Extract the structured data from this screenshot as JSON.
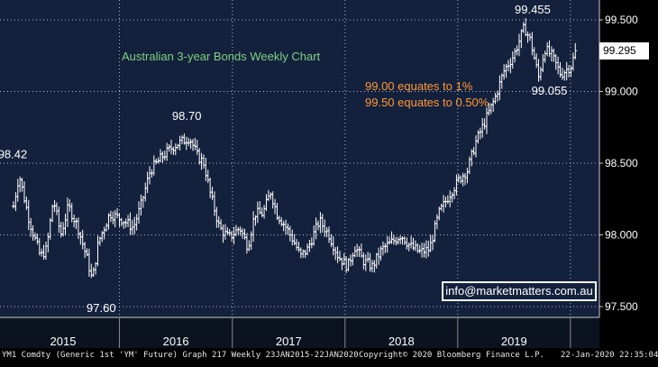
{
  "chart_data": {
    "type": "ohlc",
    "title": "Australian 3-year Bonds Weekly Chart",
    "notes": [
      "99.00 equates to 1%",
      "99.50 equates to 0.50%"
    ],
    "x_labels": [
      "2015",
      "2016",
      "2017",
      "2018",
      "2019"
    ],
    "y_ticks": [
      97.5,
      98.0,
      98.5,
      99.0,
      99.5
    ],
    "y_tick_labels": [
      "97.500",
      "98.000",
      "98.500",
      "99.000",
      "99.500"
    ],
    "ylim": [
      97.38,
      99.56
    ],
    "grid": true,
    "last_price": "99.295",
    "annotations": [
      {
        "label": "98.42",
        "date": "2015-01-20",
        "value": 98.42
      },
      {
        "label": "97.60",
        "date": "2015-10-05",
        "value": 97.6
      },
      {
        "label": "98.70",
        "date": "2016-08-15",
        "value": 98.7
      },
      {
        "label": "99.055",
        "date": "2019-09-20",
        "value": 99.055
      },
      {
        "label": "99.455",
        "date": "2019-08-20",
        "value": 99.455
      }
    ],
    "anchors": [
      [
        "2015-01-23",
        98.2
      ],
      [
        "2015-02-10",
        98.42
      ],
      [
        "2015-03-15",
        98.1
      ],
      [
        "2015-04-20",
        97.85
      ],
      [
        "2015-05-10",
        97.9
      ],
      [
        "2015-06-01",
        98.25
      ],
      [
        "2015-06-25",
        98.0
      ],
      [
        "2015-07-20",
        98.2
      ],
      [
        "2015-08-20",
        98.05
      ],
      [
        "2015-09-20",
        97.82
      ],
      [
        "2015-10-05",
        97.68
      ],
      [
        "2015-10-25",
        97.95
      ],
      [
        "2015-12-01",
        98.15
      ],
      [
        "2016-01-15",
        98.1
      ],
      [
        "2016-02-15",
        98.05
      ],
      [
        "2016-03-10",
        98.2
      ],
      [
        "2016-04-10",
        98.45
      ],
      [
        "2016-05-20",
        98.55
      ],
      [
        "2016-06-25",
        98.62
      ],
      [
        "2016-08-15",
        98.68
      ],
      [
        "2016-09-10",
        98.55
      ],
      [
        "2016-10-01",
        98.5
      ],
      [
        "2016-10-20",
        98.3
      ],
      [
        "2016-11-20",
        98.05
      ],
      [
        "2016-12-20",
        97.98
      ],
      [
        "2017-01-25",
        98.05
      ],
      [
        "2017-02-20",
        97.92
      ],
      [
        "2017-03-15",
        98.15
      ],
      [
        "2017-04-10",
        98.15
      ],
      [
        "2017-05-05",
        98.3
      ],
      [
        "2017-05-25",
        98.15
      ],
      [
        "2017-06-25",
        98.05
      ],
      [
        "2017-07-20",
        97.95
      ],
      [
        "2017-08-10",
        97.85
      ],
      [
        "2017-09-01",
        97.9
      ],
      [
        "2017-10-10",
        98.1
      ],
      [
        "2017-11-10",
        98.0
      ],
      [
        "2017-12-10",
        97.85
      ],
      [
        "2018-01-10",
        97.78
      ],
      [
        "2018-02-01",
        97.92
      ],
      [
        "2018-03-01",
        97.82
      ],
      [
        "2018-03-30",
        97.78
      ],
      [
        "2018-05-01",
        97.9
      ],
      [
        "2018-06-01",
        97.95
      ],
      [
        "2018-07-01",
        98.0
      ],
      [
        "2018-08-01",
        97.92
      ],
      [
        "2018-09-01",
        97.88
      ],
      [
        "2018-10-01",
        97.9
      ],
      [
        "2018-11-01",
        98.15
      ],
      [
        "2018-12-10",
        98.3
      ],
      [
        "2019-01-10",
        98.4
      ],
      [
        "2019-02-01",
        98.45
      ],
      [
        "2019-03-01",
        98.65
      ],
      [
        "2019-04-01",
        98.8
      ],
      [
        "2019-05-01",
        98.95
      ],
      [
        "2019-06-01",
        99.15
      ],
      [
        "2019-07-01",
        99.25
      ],
      [
        "2019-08-05",
        99.45
      ],
      [
        "2019-08-25",
        99.35
      ],
      [
        "2019-09-20",
        99.1
      ],
      [
        "2019-10-10",
        99.3
      ],
      [
        "2019-11-01",
        99.25
      ],
      [
        "2019-12-01",
        99.12
      ],
      [
        "2020-01-03",
        99.18
      ],
      [
        "2020-01-20",
        99.295
      ]
    ]
  },
  "info_box": "info@marketmatters.com.au",
  "footer": {
    "left": "YM1 Comdty (Generic 1st 'YM' Future) Graph 217  Weekly 23JAN2015-22JAN2020",
    "center": "Copyright© 2020 Bloomberg Finance L.P.",
    "right": "22-Jan-2020 22:35:04"
  },
  "colors": {
    "background": "#14213d",
    "grid": "#aeb6c4",
    "bars": "#ffffff",
    "title": "#7fd07f",
    "notes": "#ff9933",
    "labels": "#ffffff"
  }
}
